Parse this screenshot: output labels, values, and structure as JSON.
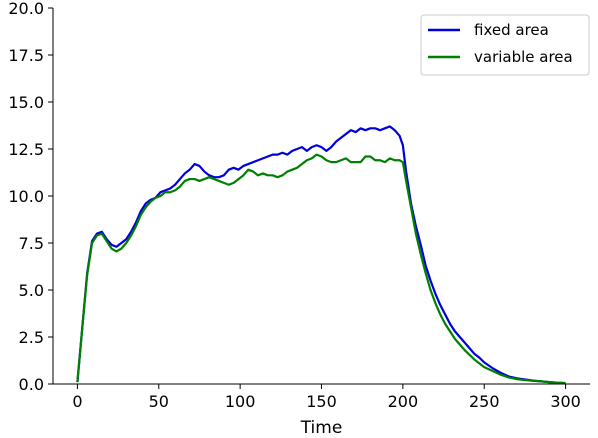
{
  "chart_data": {
    "type": "line",
    "title": "",
    "xlabel": "Time",
    "ylabel": "",
    "xlim": [
      -15,
      315
    ],
    "ylim": [
      0,
      20
    ],
    "xticks": [
      0,
      50,
      100,
      150,
      200,
      250,
      300
    ],
    "xtick_labels": [
      "0",
      "50",
      "100",
      "150",
      "200",
      "250",
      "300"
    ],
    "yticks": [
      0,
      2.5,
      5,
      7.5,
      10,
      12.5,
      15,
      17.5,
      20
    ],
    "ytick_labels": [
      "0.0",
      "2.5",
      "5.0",
      "7.5",
      "10.0",
      "12.5",
      "15.0",
      "17.5",
      "20.0"
    ],
    "grid": false,
    "legend_position": "top-right",
    "series": [
      {
        "name": "fixed area",
        "color": "#0000dd",
        "x": [
          0,
          3,
          6,
          9,
          12,
          15,
          18,
          21,
          24,
          27,
          30,
          33,
          36,
          39,
          42,
          45,
          48,
          51,
          54,
          57,
          60,
          63,
          66,
          69,
          72,
          75,
          78,
          81,
          84,
          87,
          90,
          93,
          96,
          99,
          102,
          105,
          108,
          111,
          114,
          117,
          120,
          123,
          126,
          129,
          132,
          135,
          138,
          141,
          144,
          147,
          150,
          153,
          156,
          159,
          162,
          165,
          168,
          171,
          174,
          177,
          180,
          183,
          186,
          189,
          192,
          195,
          198,
          200,
          202,
          205,
          208,
          211,
          214,
          217,
          220,
          223,
          226,
          229,
          232,
          235,
          238,
          241,
          244,
          247,
          250,
          255,
          260,
          265,
          270,
          275,
          280,
          285,
          290,
          295,
          300
        ],
        "y": [
          0.1,
          3.0,
          5.9,
          7.6,
          8.0,
          8.1,
          7.7,
          7.4,
          7.3,
          7.5,
          7.7,
          8.1,
          8.6,
          9.2,
          9.6,
          9.8,
          9.9,
          10.2,
          10.3,
          10.4,
          10.6,
          10.9,
          11.2,
          11.4,
          11.7,
          11.6,
          11.3,
          11.1,
          11.0,
          11.0,
          11.1,
          11.4,
          11.5,
          11.4,
          11.6,
          11.7,
          11.8,
          11.9,
          12.0,
          12.1,
          12.2,
          12.2,
          12.3,
          12.2,
          12.4,
          12.5,
          12.6,
          12.4,
          12.6,
          12.7,
          12.6,
          12.4,
          12.6,
          12.9,
          13.1,
          13.3,
          13.5,
          13.4,
          13.6,
          13.5,
          13.6,
          13.6,
          13.5,
          13.6,
          13.7,
          13.5,
          13.2,
          12.7,
          11.3,
          9.6,
          8.4,
          7.4,
          6.3,
          5.5,
          4.8,
          4.2,
          3.7,
          3.2,
          2.8,
          2.5,
          2.2,
          1.9,
          1.6,
          1.4,
          1.15,
          0.85,
          0.6,
          0.4,
          0.3,
          0.24,
          0.18,
          0.14,
          0.1,
          0.07,
          0.05
        ]
      },
      {
        "name": "variable area",
        "color": "#008000",
        "x": [
          0,
          3,
          6,
          9,
          12,
          15,
          18,
          21,
          24,
          27,
          30,
          33,
          36,
          39,
          42,
          45,
          48,
          51,
          54,
          57,
          60,
          63,
          66,
          69,
          72,
          75,
          78,
          81,
          84,
          87,
          90,
          93,
          96,
          99,
          102,
          105,
          108,
          111,
          114,
          117,
          120,
          123,
          126,
          129,
          132,
          135,
          138,
          141,
          144,
          147,
          150,
          153,
          156,
          159,
          162,
          165,
          168,
          171,
          174,
          177,
          180,
          183,
          186,
          189,
          192,
          195,
          198,
          200,
          202,
          205,
          208,
          211,
          214,
          217,
          220,
          223,
          226,
          229,
          232,
          235,
          238,
          241,
          244,
          247,
          250,
          255,
          260,
          265,
          270,
          275,
          280,
          285,
          290,
          295,
          300
        ],
        "y": [
          0.1,
          3.0,
          5.8,
          7.5,
          7.9,
          8.0,
          7.6,
          7.2,
          7.05,
          7.2,
          7.5,
          7.9,
          8.4,
          9.0,
          9.4,
          9.7,
          9.9,
          10.0,
          10.2,
          10.2,
          10.3,
          10.5,
          10.8,
          10.9,
          10.9,
          10.8,
          10.9,
          11.0,
          10.9,
          10.8,
          10.7,
          10.6,
          10.7,
          10.9,
          11.1,
          11.4,
          11.3,
          11.1,
          11.2,
          11.1,
          11.1,
          11.0,
          11.1,
          11.3,
          11.4,
          11.5,
          11.7,
          11.9,
          12.0,
          12.2,
          12.1,
          11.9,
          11.8,
          11.8,
          11.9,
          12.0,
          11.8,
          11.8,
          11.8,
          12.1,
          12.1,
          11.9,
          11.9,
          11.8,
          12.0,
          11.9,
          11.9,
          11.8,
          10.8,
          9.4,
          8.0,
          6.9,
          5.9,
          5.0,
          4.3,
          3.7,
          3.2,
          2.8,
          2.4,
          2.1,
          1.8,
          1.55,
          1.3,
          1.1,
          0.9,
          0.7,
          0.5,
          0.35,
          0.26,
          0.21,
          0.17,
          0.14,
          0.1,
          0.07,
          0.05
        ]
      }
    ]
  }
}
